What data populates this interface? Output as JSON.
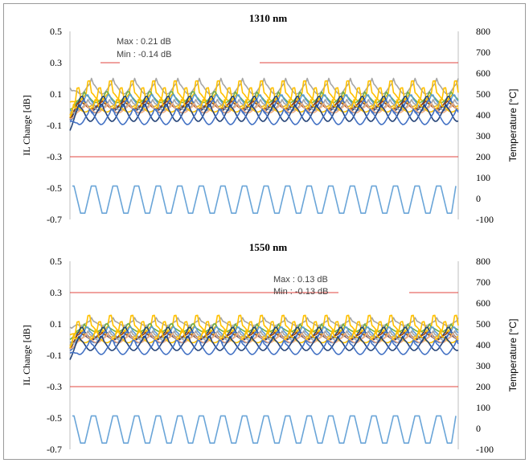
{
  "colors": {
    "limit": "#e0463f",
    "temperature": "#6aa5d8",
    "axis": "#333333"
  },
  "chart_data": [
    {
      "type": "line",
      "title": "1310 nm",
      "ylabel": "IL Change [dB]",
      "y2label": "Temperature [°C]",
      "ylim": [
        -0.7,
        0.5
      ],
      "y2lim": [
        -100,
        800
      ],
      "yticks": [
        "0.5",
        "0.3",
        "0.1",
        "-0.1",
        "-0.3",
        "-0.5",
        "-0.7"
      ],
      "y2ticks": [
        "800",
        "700",
        "600",
        "500",
        "400",
        "300",
        "200",
        "100",
        "0",
        "-100"
      ],
      "annotations": [
        "Max : 0.21 dB",
        "Min : -0.14 dB"
      ],
      "limits": [
        0.3,
        -0.3
      ],
      "cycles": 18,
      "temperature": {
        "low": -70,
        "high": 60
      },
      "series": [
        {
          "color": "#a6a6a6",
          "center": 0.135,
          "amp": 0.035,
          "spike": 0.03,
          "phase": 0.0
        },
        {
          "color": "#ffc000",
          "center": 0.085,
          "amp": 0.03,
          "spike": 0.07,
          "phase": 0.1
        },
        {
          "color": "#70ad47",
          "center": 0.07,
          "amp": 0.025,
          "spike": 0.02,
          "phase": 0.3
        },
        {
          "color": "#ffc000",
          "center": 0.05,
          "amp": 0.03,
          "spike": 0.06,
          "phase": 0.6
        },
        {
          "color": "#5b9bd5",
          "center": 0.045,
          "amp": 0.03,
          "spike": 0.02,
          "phase": 0.2
        },
        {
          "color": "#264478",
          "center": 0.03,
          "amp": 0.035,
          "spike": 0.02,
          "phase": 0.45
        },
        {
          "color": "#9e480e",
          "center": 0.025,
          "amp": 0.02,
          "spike": 0.01,
          "phase": 0.5
        },
        {
          "color": "#a5a5a5",
          "center": 0.02,
          "amp": 0.025,
          "spike": 0.02,
          "phase": 0.15
        },
        {
          "color": "#4472c4",
          "center": 0.01,
          "amp": 0.03,
          "spike": 0.02,
          "phase": 0.35
        },
        {
          "color": "#f4b183",
          "center": 0.0,
          "amp": 0.02,
          "spike": 0.02,
          "phase": 0.25
        },
        {
          "color": "#ffc000",
          "center": 0.005,
          "amp": 0.02,
          "spike": 0.04,
          "phase": 0.8
        },
        {
          "color": "#264478",
          "center": -0.03,
          "amp": 0.045,
          "spike": 0.02,
          "phase": 0.55
        },
        {
          "color": "#4472c4",
          "center": -0.055,
          "amp": 0.04,
          "spike": 0.02,
          "phase": 0.05
        }
      ]
    },
    {
      "type": "line",
      "title": "1550 nm",
      "ylabel": "IL Change [dB]",
      "y2label": "Temperature [°C]",
      "ylim": [
        -0.7,
        0.5
      ],
      "y2lim": [
        -100,
        800
      ],
      "yticks": [
        "0.5",
        "0.3",
        "0.1",
        "-0.1",
        "-0.3",
        "-0.5",
        "-0.7"
      ],
      "y2ticks": [
        "800",
        "700",
        "600",
        "500",
        "400",
        "300",
        "200",
        "100",
        "0",
        "-100"
      ],
      "annotations": [
        "Max : 0.13 dB",
        "Min : -0.13 dB"
      ],
      "limits": [
        0.3,
        -0.3
      ],
      "cycles": 18,
      "temperature": {
        "low": -70,
        "high": 60
      },
      "series": [
        {
          "color": "#a6a6a6",
          "center": 0.105,
          "amp": 0.015,
          "spike": 0.02,
          "phase": 0.0
        },
        {
          "color": "#ffc000",
          "center": 0.07,
          "amp": 0.025,
          "spike": 0.06,
          "phase": 0.1
        },
        {
          "color": "#70ad47",
          "center": 0.065,
          "amp": 0.015,
          "spike": 0.02,
          "phase": 0.3
        },
        {
          "color": "#ffc000",
          "center": 0.04,
          "amp": 0.025,
          "spike": 0.05,
          "phase": 0.6
        },
        {
          "color": "#5b9bd5",
          "center": 0.035,
          "amp": 0.025,
          "spike": 0.02,
          "phase": 0.2
        },
        {
          "color": "#264478",
          "center": 0.03,
          "amp": 0.03,
          "spike": 0.02,
          "phase": 0.45
        },
        {
          "color": "#9e480e",
          "center": 0.02,
          "amp": 0.015,
          "spike": 0.01,
          "phase": 0.5
        },
        {
          "color": "#a5a5a5",
          "center": 0.015,
          "amp": 0.02,
          "spike": 0.02,
          "phase": 0.15
        },
        {
          "color": "#4472c4",
          "center": 0.005,
          "amp": 0.025,
          "spike": 0.02,
          "phase": 0.35
        },
        {
          "color": "#f4b183",
          "center": 0.0,
          "amp": 0.02,
          "spike": 0.02,
          "phase": 0.25
        },
        {
          "color": "#ffc000",
          "center": 0.0,
          "amp": 0.02,
          "spike": 0.04,
          "phase": 0.8
        },
        {
          "color": "#264478",
          "center": -0.035,
          "amp": 0.035,
          "spike": 0.02,
          "phase": 0.55
        },
        {
          "color": "#4472c4",
          "center": -0.06,
          "amp": 0.035,
          "spike": 0.02,
          "phase": 0.05
        }
      ]
    }
  ]
}
